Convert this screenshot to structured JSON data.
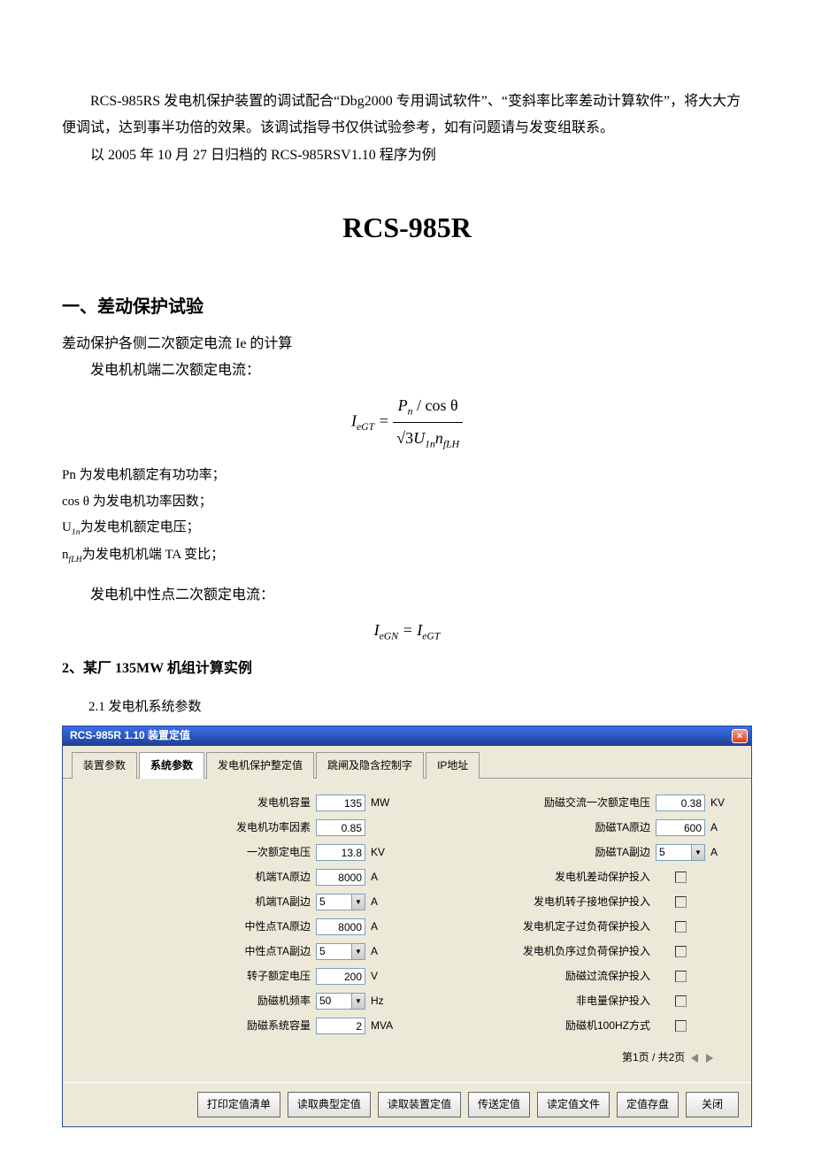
{
  "intro": {
    "p1": "RCS-985RS 发电机保护装置的调试配合“Dbg2000 专用调试软件”、“变斜率比率差动计算软件”，将大大方便调试，达到事半功倍的效果。该调试指导书仅供试验参考，如有问题请与发变组联系。",
    "p2": "以 2005 年 10 月 27 日归档的 RCS-985RSV1.10 程序为例"
  },
  "title": "RCS-985R",
  "section1": {
    "heading": "一、差动保护试验",
    "line1": "差动保护各侧二次额定电流 Ie 的计算",
    "line2": "发电机机端二次额定电流：",
    "formula1": {
      "lhs": "I",
      "lhs_sub": "eGT",
      "eq": " = ",
      "num_p": "P",
      "num_sub": "n",
      "num_rest": " / cos θ",
      "den_sqrt": "√3",
      "den_U": "U",
      "den_Usub": "1n",
      "den_n": "n",
      "den_nsub": "fLH"
    },
    "defs": {
      "d1a": "Pn 为发电机额定有功功率；",
      "d2a": "cos θ ",
      "d2b": "为发电机功率因数；",
      "d3a": "U",
      "d3s": "1n",
      "d3b": "为发电机额定电压；",
      "d4a": "n",
      "d4s": "fLH",
      "d4b": "为发电机机端 TA 变比；"
    },
    "line3": "发电机中性点二次额定电流：",
    "formula2": {
      "lhs": "I",
      "lhs_sub": "eGN",
      "eq": " = ",
      "rhs": "I",
      "rhs_sub": "eGT"
    }
  },
  "section2": {
    "heading": "2、某厂 135MW 机组计算实例",
    "sub": "2.1 发电机系统参数"
  },
  "window": {
    "title": "RCS-985R 1.10 装置定值",
    "close": "×",
    "tabs": [
      "装置参数",
      "系统参数",
      "发电机保护整定值",
      "跳闸及隐含控制字",
      "IP地址"
    ],
    "left_params": [
      {
        "label": "发电机容量",
        "type": "input",
        "value": "135",
        "unit": "MW"
      },
      {
        "label": "发电机功率因素",
        "type": "input",
        "value": "0.85",
        "unit": ""
      },
      {
        "label": "一次额定电压",
        "type": "input",
        "value": "13.8",
        "unit": "KV"
      },
      {
        "label": "机端TA原边",
        "type": "input",
        "value": "8000",
        "unit": "A"
      },
      {
        "label": "机端TA副边",
        "type": "select",
        "value": "5",
        "unit": "A"
      },
      {
        "label": "中性点TA原边",
        "type": "input",
        "value": "8000",
        "unit": "A"
      },
      {
        "label": "中性点TA副边",
        "type": "select",
        "value": "5",
        "unit": "A"
      },
      {
        "label": "转子额定电压",
        "type": "input",
        "value": "200",
        "unit": "V"
      },
      {
        "label": "励磁机频率",
        "type": "select",
        "value": "50",
        "unit": "Hz"
      },
      {
        "label": "励磁系统容量",
        "type": "input",
        "value": "2",
        "unit": "MVA"
      }
    ],
    "right_params": [
      {
        "label": "励磁交流一次额定电压",
        "type": "input",
        "value": "0.38",
        "unit": "KV"
      },
      {
        "label": "励磁TA原边",
        "type": "input",
        "value": "600",
        "unit": "A"
      },
      {
        "label": "励磁TA副边",
        "type": "select",
        "value": "5",
        "unit": "A"
      },
      {
        "label": "发电机差动保护投入",
        "type": "checkbox",
        "value": "",
        "unit": ""
      },
      {
        "label": "发电机转子接地保护投入",
        "type": "checkbox",
        "value": "",
        "unit": ""
      },
      {
        "label": "发电机定子过负荷保护投入",
        "type": "checkbox",
        "value": "",
        "unit": ""
      },
      {
        "label": "发电机负序过负荷保护投入",
        "type": "checkbox",
        "value": "",
        "unit": ""
      },
      {
        "label": "励磁过流保护投入",
        "type": "checkbox",
        "value": "",
        "unit": ""
      },
      {
        "label": "非电量保护投入",
        "type": "checkbox",
        "value": "",
        "unit": ""
      },
      {
        "label": "励磁机100HZ方式",
        "type": "checkbox",
        "value": "",
        "unit": ""
      }
    ],
    "pager": "第1页 / 共2页",
    "buttons": [
      "打印定值清单",
      "读取典型定值",
      "读取装置定值",
      "传送定值",
      "读定值文件",
      "定值存盘",
      "关闭"
    ]
  }
}
